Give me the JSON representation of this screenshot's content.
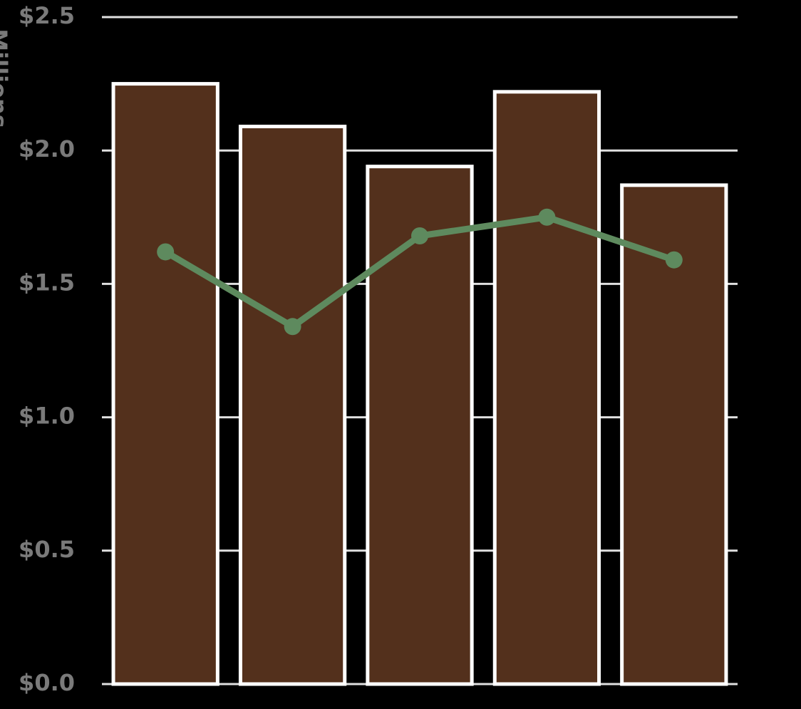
{
  "chart_data": {
    "type": "combo",
    "y_axis_title": "Millions",
    "categories": [
      null,
      null,
      null,
      null,
      null
    ],
    "series": [
      {
        "type": "bar",
        "color": "#53301c",
        "values": [
          2.25,
          2.09,
          1.94,
          2.22,
          1.87
        ]
      },
      {
        "type": "line",
        "color": "#5e8a5e",
        "values": [
          1.62,
          1.34,
          1.68,
          1.75,
          1.59
        ]
      }
    ],
    "ylim": [
      0,
      2.5
    ],
    "yticks": [
      {
        "value": 0,
        "label": "$0.0"
      },
      {
        "value": 0.5,
        "label": "$0.5"
      },
      {
        "value": 1,
        "label": "$1.0"
      },
      {
        "value": 1.5,
        "label": "$1.5"
      },
      {
        "value": 2,
        "label": "$2.0"
      },
      {
        "value": 2.5,
        "label": "$2.5"
      }
    ],
    "grid": true
  }
}
